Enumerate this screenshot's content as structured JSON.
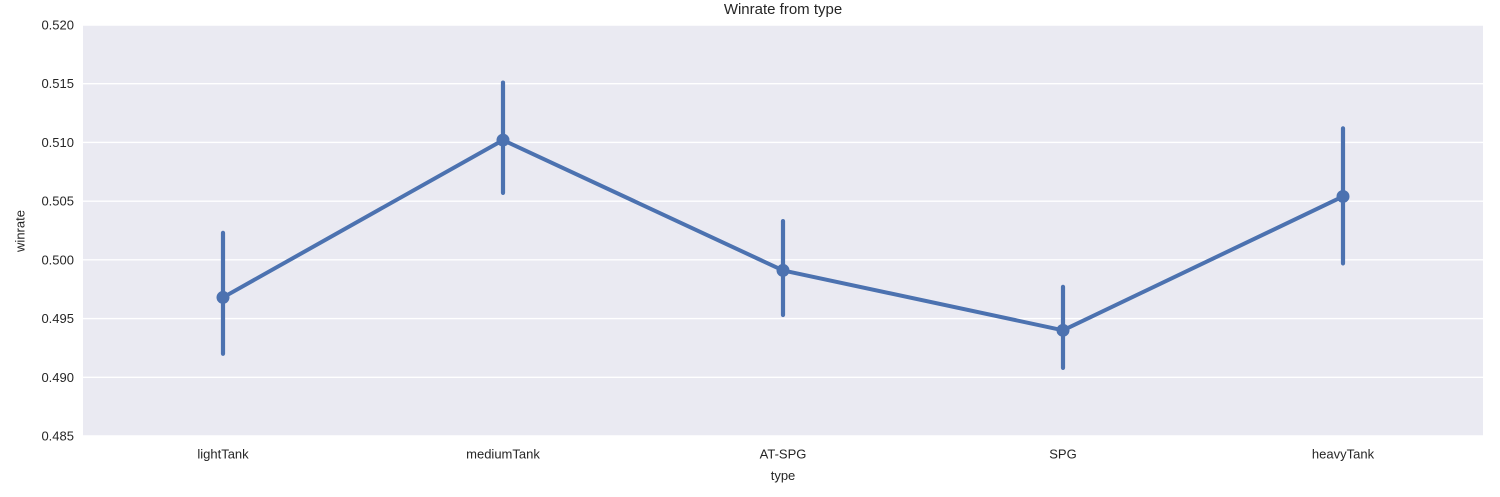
{
  "chart_data": {
    "type": "line",
    "title": "Winrate from type",
    "xlabel": "type",
    "ylabel": "winrate",
    "categories": [
      "lightTank",
      "mediumTank",
      "AT-SPG",
      "SPG",
      "heavyTank"
    ],
    "series": [
      {
        "name": "winrate",
        "values": [
          0.4968,
          0.5102,
          0.4991,
          0.494,
          0.5054
        ],
        "ci_low": [
          0.492,
          0.5057,
          0.4953,
          0.4908,
          0.4997
        ],
        "ci_high": [
          0.5023,
          0.5151,
          0.5033,
          0.4977,
          0.5112
        ]
      }
    ],
    "ylim": [
      0.485,
      0.52
    ],
    "yticks": [
      0.485,
      0.49,
      0.495,
      0.5,
      0.505,
      0.51,
      0.515,
      0.52
    ],
    "ytick_labels": [
      "0.485",
      "0.490",
      "0.495",
      "0.500",
      "0.505",
      "0.510",
      "0.515",
      "0.520"
    ],
    "grid": true,
    "legend_position": "none",
    "error_bars": true,
    "colors": {
      "line": "#4C72B0",
      "marker": "#4C72B0",
      "plot_background": "#EAEAF2",
      "grid_line": "#FFFFFF",
      "text": "#262626",
      "figure_background": "#FFFFFF"
    }
  }
}
